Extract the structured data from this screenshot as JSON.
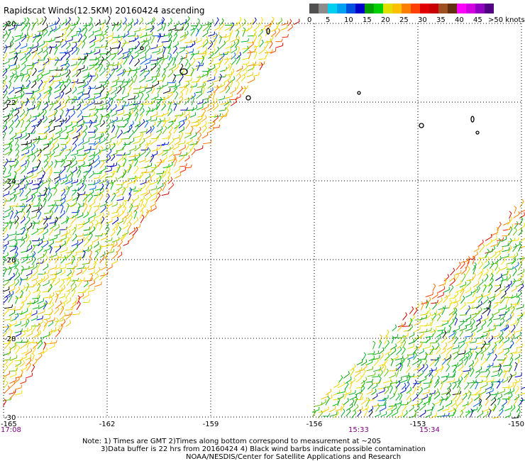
{
  "title": "Rapidscat Winds(12.5KM) 20160424 ascending",
  "colorbar": {
    "unit_label": ">50 knots",
    "bins": [
      {
        "color": "#505050"
      },
      {
        "color": "#8c8c8c"
      },
      {
        "color": "#00cff0"
      },
      {
        "color": "#00a0f0"
      },
      {
        "color": "#0050e0"
      },
      {
        "color": "#0000c8"
      },
      {
        "color": "#00a000"
      },
      {
        "color": "#00d000"
      },
      {
        "color": "#e0e000"
      },
      {
        "color": "#ffc000"
      },
      {
        "color": "#ff8000"
      },
      {
        "color": "#ff4000"
      },
      {
        "color": "#e00000"
      },
      {
        "color": "#c80000"
      },
      {
        "color": "#a05020"
      },
      {
        "color": "#603010"
      },
      {
        "color": "#ff00ff"
      },
      {
        "color": "#d000e0"
      },
      {
        "color": "#9000c0"
      },
      {
        "color": "#500080"
      }
    ],
    "tick_labels": [
      "0",
      "5",
      "10",
      "15",
      "20",
      "25",
      "30",
      "35",
      "40",
      "45"
    ]
  },
  "map": {
    "lat_labels": [
      "-20",
      "-22",
      "-24",
      "-26",
      "-28",
      "-30"
    ],
    "lon_labels": [
      "-165",
      "-162",
      "-159",
      "-156",
      "-153",
      "-150"
    ],
    "time_labels": [
      {
        "text": "17:08",
        "color": "#800080"
      },
      {
        "text": "15:33",
        "color": "#800080"
      },
      {
        "text": "15:34",
        "color": "#800080"
      }
    ]
  },
  "notes": [
    "Note: 1) Times are GMT 2)Times along bottom correspond to measurement at ~20S",
    "3)Data buffer is 22 hrs from 20160424 4) Black wind barbs indicate possible contamination",
    "NOAA/NESDIS/Center for Satellite Applications and Research"
  ]
}
